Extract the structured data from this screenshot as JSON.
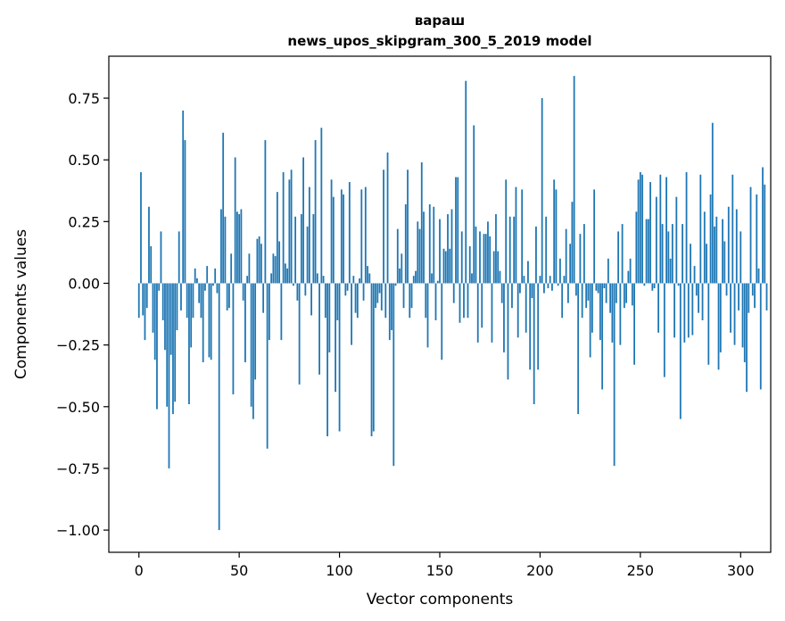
{
  "chart_data": {
    "type": "bar",
    "title_line1": "вараш",
    "title_line2": "news_upos_skipgram_300_5_2019 model",
    "xlabel": "Vector components",
    "ylabel": "Components values",
    "xlim": [
      -15,
      315
    ],
    "ylim": [
      -1.09,
      0.92
    ],
    "xticks": [
      0,
      50,
      100,
      150,
      200,
      250,
      300
    ],
    "yticks": [
      -1.0,
      -0.75,
      -0.5,
      -0.25,
      0.0,
      0.25,
      0.5,
      0.75
    ],
    "ytick_labels": [
      "−1.00",
      "−0.75",
      "−0.50",
      "−0.25",
      "0.00",
      "0.25",
      "0.50",
      "0.75"
    ],
    "bar_color": "#1f77b4",
    "values": [
      -0.14,
      0.45,
      -0.13,
      -0.23,
      -0.1,
      0.31,
      0.15,
      -0.2,
      -0.31,
      -0.51,
      -0.03,
      0.21,
      -0.15,
      -0.27,
      -0.5,
      -0.75,
      -0.29,
      -0.53,
      -0.48,
      -0.19,
      0.21,
      -0.11,
      0.7,
      0.58,
      -0.14,
      -0.49,
      -0.26,
      -0.14,
      0.06,
      0.02,
      -0.08,
      -0.14,
      -0.32,
      -0.03,
      0.07,
      -0.3,
      -0.31,
      -0.01,
      0.06,
      -0.04,
      -1.0,
      0.3,
      0.61,
      0.27,
      -0.11,
      -0.1,
      0.12,
      -0.45,
      0.51,
      0.29,
      0.28,
      0.3,
      -0.07,
      -0.32,
      0.03,
      0.12,
      -0.5,
      -0.55,
      -0.39,
      0.18,
      0.19,
      0.16,
      -0.12,
      0.58,
      -0.67,
      -0.23,
      0.04,
      0.12,
      0.11,
      0.37,
      0.17,
      -0.23,
      0.45,
      0.08,
      0.06,
      0.42,
      0.46,
      -0.01,
      0.27,
      -0.07,
      -0.41,
      0.28,
      0.51,
      -0.05,
      0.23,
      0.39,
      -0.13,
      0.28,
      0.58,
      0.04,
      -0.37,
      0.63,
      0.03,
      -0.14,
      -0.62,
      -0.28,
      0.42,
      0.35,
      -0.44,
      -0.15,
      -0.6,
      0.38,
      0.36,
      -0.05,
      -0.03,
      0.41,
      -0.25,
      0.03,
      -0.12,
      -0.14,
      0.02,
      0.38,
      -0.07,
      0.39,
      0.07,
      0.04,
      -0.62,
      -0.6,
      -0.1,
      -0.08,
      -0.04,
      -0.11,
      0.46,
      -0.14,
      0.53,
      -0.23,
      -0.19,
      -0.74,
      -0.01,
      0.22,
      0.06,
      0.12,
      -0.1,
      0.32,
      0.46,
      -0.14,
      -0.1,
      0.03,
      0.05,
      0.25,
      0.22,
      0.49,
      0.29,
      -0.14,
      -0.26,
      0.32,
      0.04,
      0.31,
      -0.15,
      0.01,
      0.26,
      -0.31,
      0.14,
      0.13,
      0.28,
      0.14,
      0.3,
      -0.08,
      0.43,
      0.43,
      -0.16,
      0.21,
      -0.14,
      0.82,
      -0.14,
      0.15,
      0.04,
      0.64,
      0.23,
      -0.24,
      0.21,
      -0.18,
      0.2,
      0.2,
      0.25,
      0.19,
      -0.24,
      0.13,
      0.28,
      0.13,
      0.05,
      -0.08,
      -0.28,
      0.42,
      -0.39,
      0.27,
      -0.1,
      0.27,
      0.39,
      -0.22,
      -0.04,
      0.38,
      0.03,
      -0.2,
      0.09,
      -0.35,
      -0.06,
      -0.49,
      0.23,
      -0.35,
      0.03,
      0.75,
      -0.04,
      0.27,
      -0.02,
      0.03,
      -0.03,
      0.42,
      0.38,
      -0.01,
      0.1,
      -0.14,
      0.03,
      0.22,
      -0.08,
      0.16,
      0.33,
      0.84,
      -0.05,
      -0.53,
      0.2,
      -0.14,
      0.24,
      -0.1,
      -0.07,
      -0.3,
      -0.2,
      0.38,
      -0.03,
      -0.04,
      -0.23,
      -0.43,
      -0.02,
      -0.08,
      0.1,
      -0.12,
      -0.24,
      -0.74,
      -0.08,
      0.21,
      -0.25,
      0.24,
      -0.1,
      -0.08,
      0.05,
      0.1,
      -0.09,
      -0.33,
      0.29,
      0.42,
      0.45,
      0.44,
      -0.01,
      0.26,
      0.26,
      0.41,
      -0.03,
      -0.02,
      0.35,
      -0.2,
      0.44,
      0.24,
      -0.38,
      0.43,
      0.21,
      0.1,
      0.24,
      -0.22,
      0.35,
      -0.01,
      -0.55,
      0.24,
      -0.24,
      0.45,
      -0.22,
      0.16,
      -0.21,
      0.07,
      -0.05,
      -0.12,
      0.44,
      -0.15,
      0.29,
      0.16,
      -0.33,
      0.36,
      0.65,
      0.23,
      0.27,
      -0.35,
      -0.28,
      0.26,
      0.17,
      -0.05,
      0.31,
      -0.2,
      0.44,
      -0.25,
      0.3,
      -0.11,
      0.21,
      -0.26,
      -0.32,
      -0.44,
      -0.12,
      0.39,
      -0.05,
      -0.1,
      0.36,
      0.06,
      -0.43,
      0.47,
      0.4,
      -0.11
    ]
  }
}
